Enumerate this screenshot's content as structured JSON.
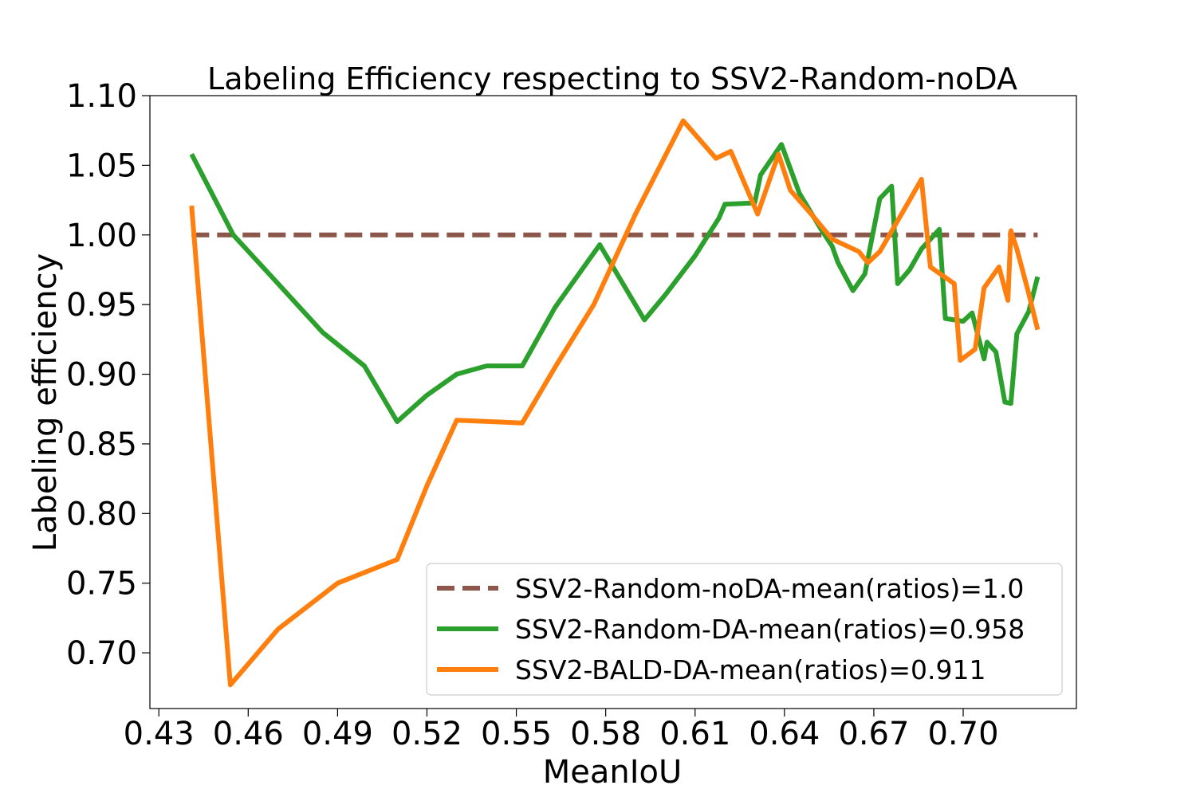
{
  "chart_data": {
    "type": "line",
    "title": "Labeling Efficiency respecting to SSV2-Random-noDA",
    "xlabel": "MeanIoU",
    "ylabel": "Labeling efficiency",
    "xlim": [
      0.427,
      0.738
    ],
    "ylim": [
      0.66,
      1.1
    ],
    "xticks": [
      0.43,
      0.46,
      0.49,
      0.52,
      0.55,
      0.58,
      0.61,
      0.64,
      0.67,
      0.7
    ],
    "xtick_labels": [
      "0.43",
      "0.46",
      "0.49",
      "0.52",
      "0.55",
      "0.58",
      "0.61",
      "0.64",
      "0.67",
      "0.70"
    ],
    "yticks": [
      0.7,
      0.75,
      0.8,
      0.85,
      0.9,
      0.95,
      1.0,
      1.05,
      1.1
    ],
    "ytick_labels": [
      "0.70",
      "0.75",
      "0.80",
      "0.85",
      "0.90",
      "0.95",
      "1.00",
      "1.05",
      "1.10"
    ],
    "grid": false,
    "legend_position": "bottom-right",
    "series": [
      {
        "name": "SSV2-Random-noDA-mean(ratios)=1.0",
        "color": "#8c564b",
        "style": "dashed",
        "x": [
          0.441,
          0.725
        ],
        "y": [
          1.0,
          1.0
        ]
      },
      {
        "name": "SSV2-Random-DA-mean(ratios)=0.958",
        "color": "#2ca02c",
        "style": "solid",
        "x": [
          0.441,
          0.455,
          0.47,
          0.485,
          0.499,
          0.51,
          0.52,
          0.53,
          0.54,
          0.552,
          0.563,
          0.578,
          0.593,
          0.6,
          0.61,
          0.618,
          0.62,
          0.63,
          0.632,
          0.639,
          0.645,
          0.652,
          0.656,
          0.658,
          0.663,
          0.667,
          0.672,
          0.676,
          0.678,
          0.682,
          0.686,
          0.692,
          0.694,
          0.7,
          0.703,
          0.707,
          0.708,
          0.711,
          0.714,
          0.716,
          0.718,
          0.722,
          0.725
        ],
        "y": [
          1.058,
          1.0,
          0.965,
          0.93,
          0.906,
          0.866,
          0.885,
          0.9,
          0.906,
          0.906,
          0.948,
          0.993,
          0.939,
          0.957,
          0.985,
          1.012,
          1.022,
          1.023,
          1.043,
          1.065,
          1.03,
          1.005,
          0.992,
          0.98,
          0.96,
          0.972,
          1.026,
          1.035,
          0.965,
          0.975,
          0.99,
          1.004,
          0.94,
          0.938,
          0.944,
          0.911,
          0.923,
          0.916,
          0.88,
          0.879,
          0.929,
          0.945,
          0.97
        ]
      },
      {
        "name": "SSV2-BALD-DA-mean(ratios)=0.911",
        "color": "#ff7f0e",
        "style": "solid",
        "x": [
          0.441,
          0.454,
          0.47,
          0.49,
          0.51,
          0.52,
          0.53,
          0.552,
          0.563,
          0.576,
          0.59,
          0.606,
          0.617,
          0.622,
          0.631,
          0.638,
          0.642,
          0.649,
          0.656,
          0.665,
          0.668,
          0.672,
          0.682,
          0.686,
          0.689,
          0.697,
          0.699,
          0.704,
          0.707,
          0.712,
          0.715,
          0.716,
          0.718,
          0.722,
          0.725
        ],
        "y": [
          1.021,
          0.677,
          0.717,
          0.75,
          0.767,
          0.82,
          0.867,
          0.865,
          0.905,
          0.95,
          1.015,
          1.082,
          1.055,
          1.06,
          1.015,
          1.058,
          1.032,
          1.015,
          0.997,
          0.988,
          0.98,
          0.988,
          1.025,
          1.04,
          0.977,
          0.965,
          0.91,
          0.918,
          0.962,
          0.977,
          0.953,
          1.003,
          0.99,
          0.958,
          0.932
        ]
      }
    ]
  }
}
